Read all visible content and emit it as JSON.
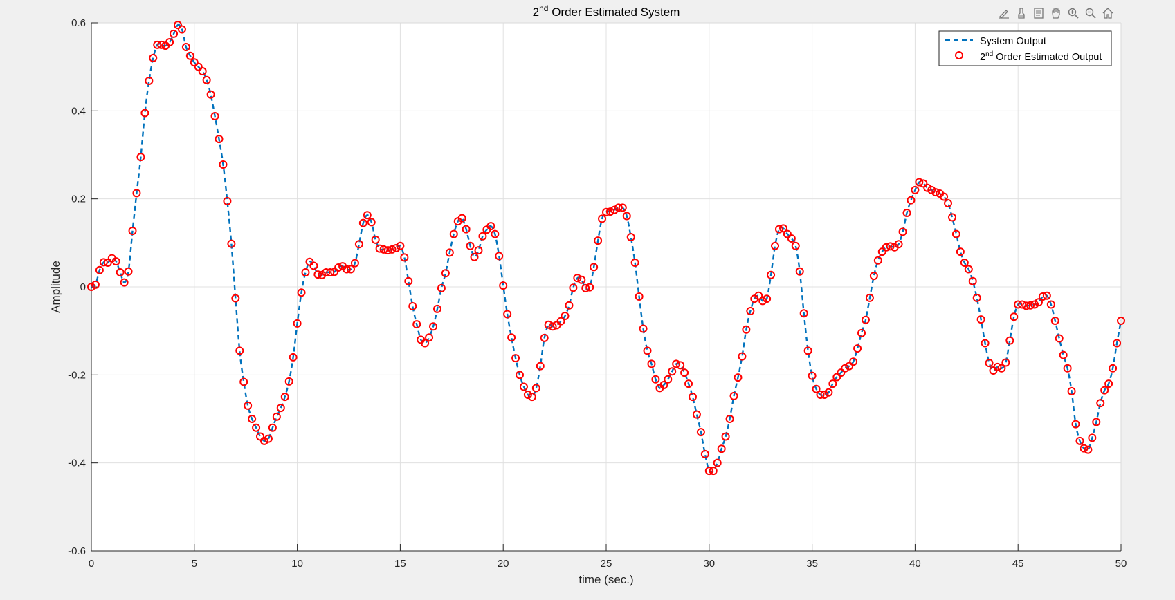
{
  "toolbar": {
    "icons": [
      "edit-plot-icon",
      "brush-icon",
      "data-tips-icon",
      "pan-icon",
      "zoom-in-icon",
      "zoom-out-icon",
      "home-icon"
    ]
  },
  "colors": {
    "figure_bg": "#f0f0f0",
    "axes_bg": "#ffffff",
    "grid": "#e0e0e0",
    "line": "#0072BD",
    "marker": "#FF0000",
    "axis": "#262626"
  },
  "chart_data": {
    "type": "line",
    "title": {
      "main": "2",
      "sup": "nd",
      "rest": " Order Estimated System"
    },
    "xlabel": "time (sec.)",
    "ylabel": "Amplitude",
    "xlim": [
      0,
      50
    ],
    "ylim": [
      -0.6,
      0.6
    ],
    "xticks": [
      0,
      5,
      10,
      15,
      20,
      25,
      30,
      35,
      40,
      45,
      50
    ],
    "yticks": [
      -0.6,
      -0.4,
      -0.2,
      0,
      0.2,
      0.4,
      0.6
    ],
    "xtick_labels": [
      "0",
      "5",
      "10",
      "15",
      "20",
      "25",
      "30",
      "35",
      "40",
      "45",
      "50"
    ],
    "ytick_labels": [
      "-0.6",
      "-0.4",
      "-0.2",
      "0",
      "0.2",
      "0.4",
      "0.6"
    ],
    "grid": true,
    "legend_position": "top-right",
    "series": [
      {
        "name": "System Output",
        "style": "dashed-line",
        "legend": {
          "main": "System Output",
          "sup": "",
          "rest": ""
        }
      },
      {
        "name": "2nd Order Estimated Output",
        "style": "circle-markers",
        "legend": {
          "main": "2",
          "sup": "nd",
          "rest": " Order Estimated Output"
        }
      }
    ],
    "x": [
      0,
      0.2,
      0.4,
      0.6,
      0.8,
      1.0,
      1.2,
      1.4,
      1.6,
      1.8,
      2.0,
      2.2,
      2.4,
      2.6,
      2.8,
      3.0,
      3.2,
      3.4,
      3.6,
      3.8,
      4.0,
      4.2,
      4.4,
      4.6,
      4.8,
      5.0,
      5.2,
      5.4,
      5.6,
      5.8,
      6.0,
      6.2,
      6.4,
      6.6,
      6.8,
      7.0,
      7.2,
      7.4,
      7.6,
      7.8,
      8.0,
      8.2,
      8.4,
      8.6,
      8.8,
      9.0,
      9.2,
      9.4,
      9.6,
      9.8,
      10.0,
      10.2,
      10.4,
      10.6,
      10.8,
      11.0,
      11.2,
      11.4,
      11.6,
      11.8,
      12.0,
      12.2,
      12.4,
      12.6,
      12.8,
      13.0,
      13.2,
      13.4,
      13.6,
      13.8,
      14.0,
      14.2,
      14.4,
      14.6,
      14.8,
      15.0,
      15.2,
      15.4,
      15.6,
      15.8,
      16.0,
      16.2,
      16.4,
      16.6,
      16.8,
      17.0,
      17.2,
      17.4,
      17.6,
      17.8,
      18.0,
      18.2,
      18.4,
      18.6,
      18.8,
      19.0,
      19.2,
      19.4,
      19.6,
      19.8,
      20.0,
      20.2,
      20.4,
      20.6,
      20.8,
      21.0,
      21.2,
      21.4,
      21.6,
      21.8,
      22.0,
      22.2,
      22.4,
      22.6,
      22.8,
      23.0,
      23.2,
      23.4,
      23.6,
      23.8,
      24.0,
      24.2,
      24.4,
      24.6,
      24.8,
      25.0,
      25.2,
      25.4,
      25.6,
      25.8,
      26.0,
      26.2,
      26.4,
      26.6,
      26.8,
      27.0,
      27.2,
      27.4,
      27.6,
      27.8,
      28.0,
      28.2,
      28.4,
      28.6,
      28.8,
      29.0,
      29.2,
      29.4,
      29.6,
      29.8,
      30.0,
      30.2,
      30.4,
      30.6,
      30.8,
      31.0,
      31.2,
      31.4,
      31.6,
      31.8,
      32.0,
      32.2,
      32.4,
      32.6,
      32.8,
      33.0,
      33.2,
      33.4,
      33.6,
      33.8,
      34.0,
      34.2,
      34.4,
      34.6,
      34.8,
      35.0,
      35.2,
      35.4,
      35.6,
      35.8,
      36.0,
      36.2,
      36.4,
      36.6,
      36.8,
      37.0,
      37.2,
      37.4,
      37.6,
      37.8,
      38.0,
      38.2,
      38.4,
      38.6,
      38.8,
      39.0,
      39.2,
      39.4,
      39.6,
      39.8,
      40.0,
      40.2,
      40.4,
      40.6,
      40.8,
      41.0,
      41.2,
      41.4,
      41.6,
      41.8,
      42.0,
      42.2,
      42.4,
      42.6,
      42.8,
      43.0,
      43.2,
      43.4,
      43.6,
      43.8,
      44.0,
      44.2,
      44.4,
      44.6,
      44.8,
      45.0,
      45.2,
      45.4,
      45.6,
      45.8,
      46.0,
      46.2,
      46.4,
      46.6,
      46.8,
      47.0,
      47.2,
      47.4,
      47.6,
      47.8,
      48.0,
      48.2,
      48.4,
      48.6,
      48.8,
      49.0,
      49.2,
      49.4,
      49.6,
      49.8,
      50.0
    ],
    "y": [
      0,
      0.005,
      0.038,
      0.056,
      0.055,
      0.065,
      0.058,
      0.033,
      0.01,
      0.035,
      0.127,
      0.213,
      0.295,
      0.395,
      0.468,
      0.52,
      0.55,
      0.55,
      0.548,
      0.556,
      0.575,
      0.595,
      0.585,
      0.545,
      0.525,
      0.51,
      0.5,
      0.49,
      0.47,
      0.437,
      0.388,
      0.336,
      0.278,
      0.195,
      0.098,
      -0.026,
      -0.145,
      -0.216,
      -0.27,
      -0.3,
      -0.32,
      -0.34,
      -0.35,
      -0.345,
      -0.32,
      -0.295,
      -0.275,
      -0.25,
      -0.215,
      -0.16,
      -0.083,
      -0.013,
      0.033,
      0.057,
      0.048,
      0.028,
      0.027,
      0.033,
      0.033,
      0.034,
      0.044,
      0.047,
      0.04,
      0.04,
      0.054,
      0.097,
      0.145,
      0.163,
      0.147,
      0.107,
      0.087,
      0.085,
      0.083,
      0.085,
      0.088,
      0.093,
      0.067,
      0.013,
      -0.044,
      -0.085,
      -0.12,
      -0.128,
      -0.115,
      -0.09,
      -0.05,
      -0.003,
      0.031,
      0.078,
      0.12,
      0.149,
      0.156,
      0.131,
      0.093,
      0.068,
      0.083,
      0.115,
      0.13,
      0.138,
      0.12,
      0.07,
      0.003,
      -0.062,
      -0.115,
      -0.162,
      -0.2,
      -0.227,
      -0.245,
      -0.25,
      -0.23,
      -0.18,
      -0.116,
      -0.086,
      -0.09,
      -0.087,
      -0.078,
      -0.066,
      -0.042,
      -0.002,
      0.02,
      0.016,
      -0.003,
      -0.001,
      0.045,
      0.105,
      0.155,
      0.17,
      0.171,
      0.175,
      0.18,
      0.18,
      0.161,
      0.113,
      0.055,
      -0.022,
      -0.095,
      -0.145,
      -0.175,
      -0.21,
      -0.23,
      -0.223,
      -0.21,
      -0.192,
      -0.175,
      -0.178,
      -0.195,
      -0.22,
      -0.25,
      -0.29,
      -0.33,
      -0.38,
      -0.418,
      -0.418,
      -0.4,
      -0.368,
      -0.34,
      -0.3,
      -0.248,
      -0.206,
      -0.158,
      -0.097,
      -0.055,
      -0.027,
      -0.02,
      -0.032,
      -0.027,
      0.027,
      0.093,
      0.131,
      0.133,
      0.12,
      0.11,
      0.093,
      0.035,
      -0.06,
      -0.145,
      -0.202,
      -0.232,
      -0.245,
      -0.245,
      -0.24,
      -0.22,
      -0.205,
      -0.195,
      -0.185,
      -0.18,
      -0.17,
      -0.14,
      -0.105,
      -0.075,
      -0.025,
      0.025,
      0.06,
      0.08,
      0.09,
      0.092,
      0.09,
      0.097,
      0.125,
      0.168,
      0.197,
      0.22,
      0.238,
      0.235,
      0.225,
      0.22,
      0.215,
      0.212,
      0.205,
      0.19,
      0.158,
      0.12,
      0.08,
      0.055,
      0.04,
      0.013,
      -0.025,
      -0.074,
      -0.128,
      -0.173,
      -0.19,
      -0.182,
      -0.185,
      -0.172,
      -0.122,
      -0.068,
      -0.04,
      -0.04,
      -0.043,
      -0.042,
      -0.04,
      -0.035,
      -0.022,
      -0.02,
      -0.04,
      -0.077,
      -0.117,
      -0.155,
      -0.185,
      -0.237,
      -0.312,
      -0.35,
      -0.367,
      -0.37,
      -0.343,
      -0.307,
      -0.264,
      -0.235,
      -0.22,
      -0.185,
      -0.128,
      -0.077
    ]
  }
}
